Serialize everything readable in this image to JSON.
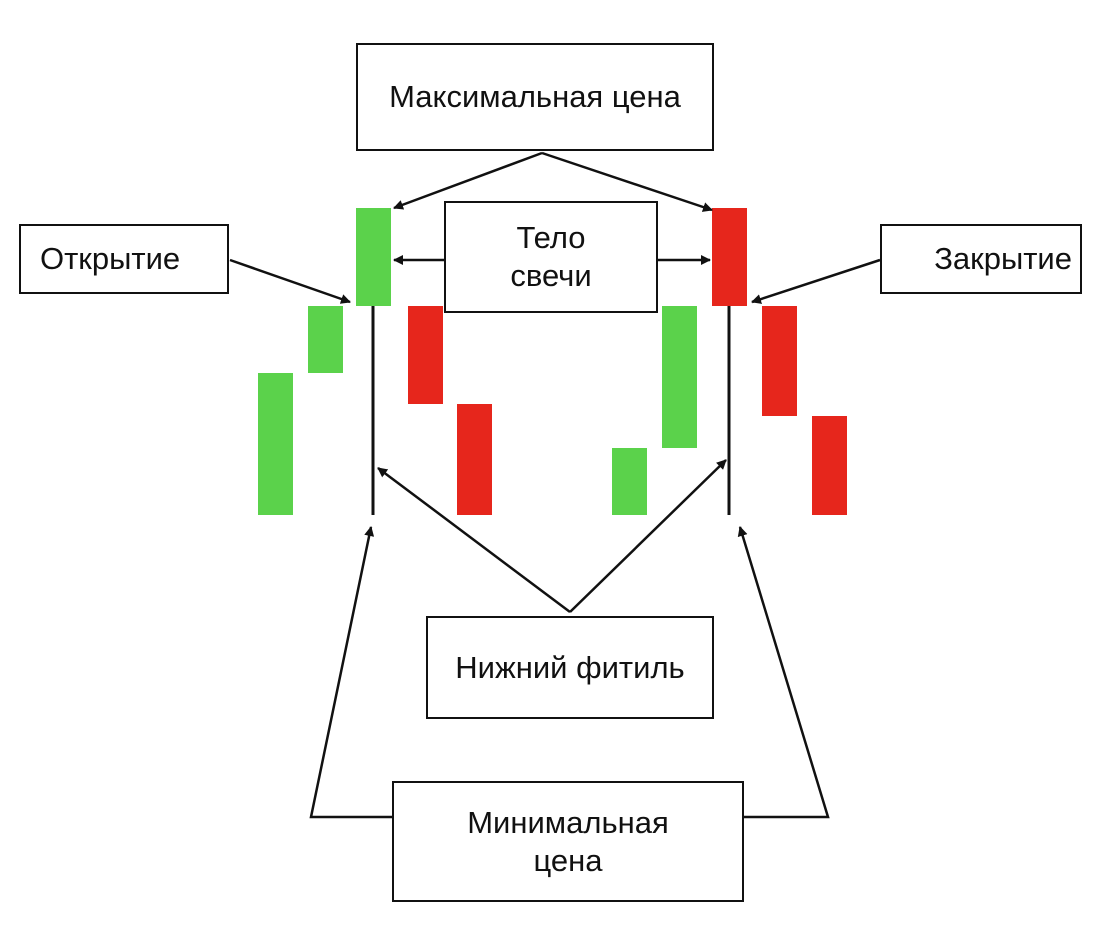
{
  "labels": {
    "max_price": "Максимальная цена",
    "open": "Открытие",
    "body_line1": "Тело",
    "body_line2": "свечи",
    "close": "Закрытие",
    "lower_wick": "Нижний фитиль",
    "min_price_line1": "Минимальная",
    "min_price_line2": "цена"
  },
  "colors": {
    "bullish": "#5bd24b",
    "bearish": "#e6261c",
    "line": "#111111"
  }
}
